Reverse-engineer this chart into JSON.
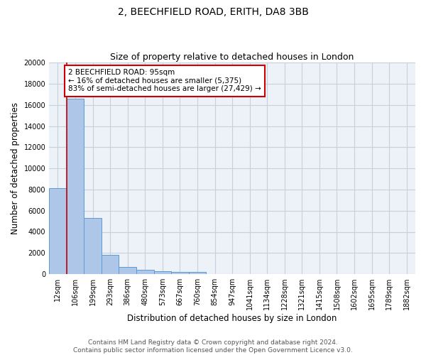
{
  "title": "2, BEECHFIELD ROAD, ERITH, DA8 3BB",
  "subtitle": "Size of property relative to detached houses in London",
  "xlabel": "Distribution of detached houses by size in London",
  "ylabel": "Number of detached properties",
  "categories": [
    "12sqm",
    "106sqm",
    "199sqm",
    "293sqm",
    "386sqm",
    "480sqm",
    "573sqm",
    "667sqm",
    "760sqm",
    "854sqm",
    "947sqm",
    "1041sqm",
    "1134sqm",
    "1228sqm",
    "1321sqm",
    "1415sqm",
    "1508sqm",
    "1602sqm",
    "1695sqm",
    "1789sqm",
    "1882sqm"
  ],
  "values": [
    8100,
    16600,
    5300,
    1850,
    700,
    380,
    280,
    220,
    190,
    0,
    0,
    0,
    0,
    0,
    0,
    0,
    0,
    0,
    0,
    0,
    0
  ],
  "bar_color": "#aec6e8",
  "bar_edge_color": "#5b9bd5",
  "property_line_color": "#cc0000",
  "annotation_text": "2 BEECHFIELD ROAD: 95sqm\n← 16% of detached houses are smaller (5,375)\n83% of semi-detached houses are larger (27,429) →",
  "annotation_box_color": "#ffffff",
  "annotation_box_edge_color": "#cc0000",
  "ylim": [
    0,
    20000
  ],
  "yticks": [
    0,
    2000,
    4000,
    6000,
    8000,
    10000,
    12000,
    14000,
    16000,
    18000,
    20000
  ],
  "grid_color": "#c8d0dc",
  "background_color": "#edf1f8",
  "footer_line1": "Contains HM Land Registry data © Crown copyright and database right 2024.",
  "footer_line2": "Contains public sector information licensed under the Open Government Licence v3.0.",
  "title_fontsize": 10,
  "subtitle_fontsize": 9,
  "axis_label_fontsize": 8.5,
  "tick_fontsize": 7,
  "annotation_fontsize": 7.5,
  "footer_fontsize": 6.5
}
